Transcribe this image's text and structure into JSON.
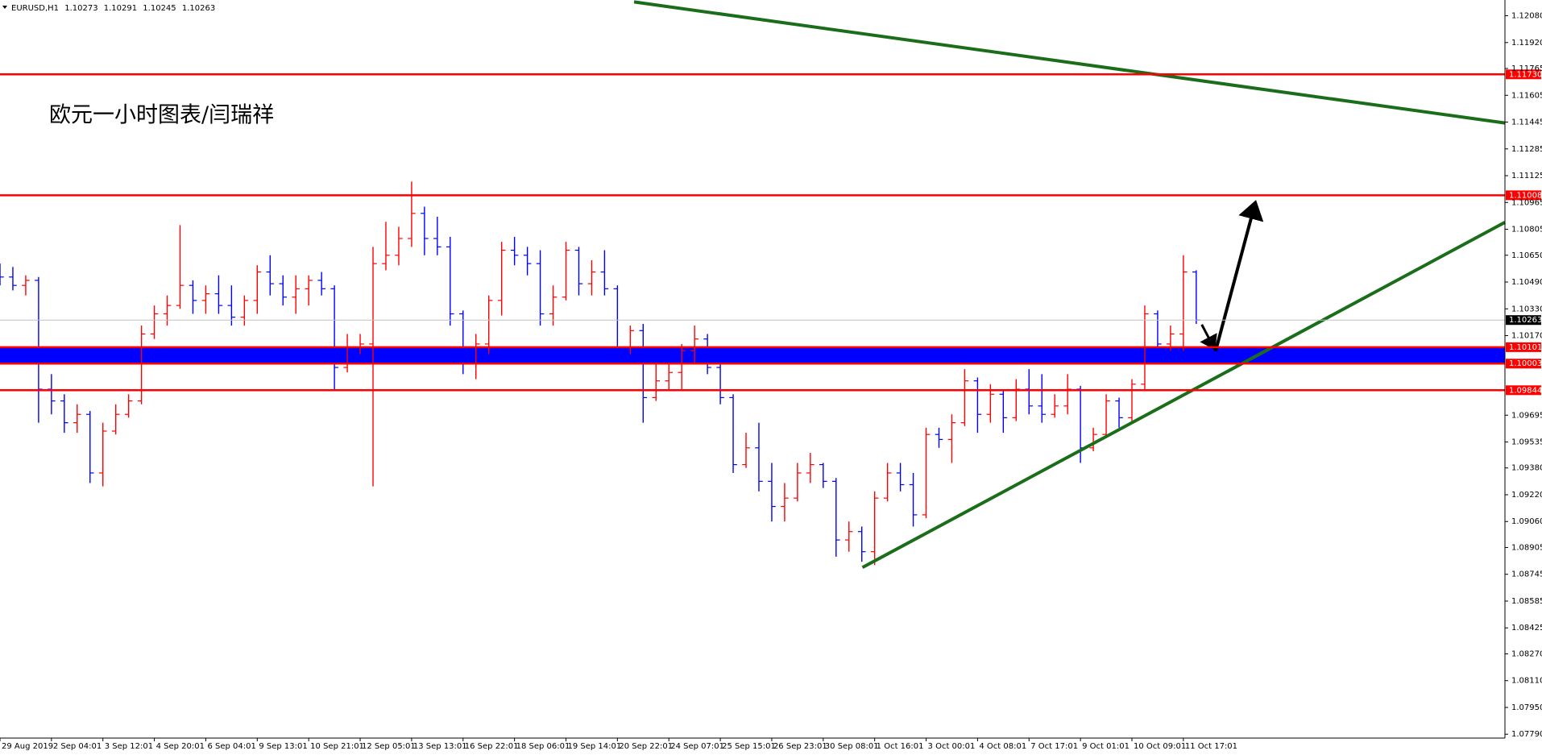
{
  "chart_data": {
    "type": "ohlc",
    "title": "EURUSD,H1",
    "quote": [
      1.10273,
      1.10291,
      1.10245,
      1.10263
    ],
    "annotation": "欧元一小时图表/闫瑞祥",
    "up_color": "#ff0000",
    "down_color": "#0000ff",
    "open": [
      1.1055,
      1.1052,
      1.1047,
      1.105,
      1.0985,
      1.0978,
      1.0965,
      1.097,
      1.0935,
      1.096,
      1.097,
      1.0978,
      1.1018,
      1.103,
      1.1035,
      1.1047,
      1.1038,
      1.1042,
      1.1035,
      1.1028,
      1.1038,
      1.1055,
      1.1048,
      1.104,
      1.1045,
      1.105,
      1.1045,
      1.0998,
      1.101,
      1.1012,
      1.106,
      1.1065,
      1.1075,
      1.109,
      1.1075,
      1.107,
      1.103,
      1.1,
      1.1012,
      1.1038,
      1.1068,
      1.1065,
      1.106,
      1.103,
      1.104,
      1.1068,
      1.1048,
      1.1055,
      1.1045,
      1.101,
      1.102,
      1.098,
      1.099,
      1.0995,
      1.1008,
      1.1015,
      1.0998,
      1.098,
      1.094,
      1.095,
      1.093,
      1.0915,
      1.092,
      1.0935,
      1.094,
      1.093,
      1.0895,
      1.09,
      1.0888,
      1.092,
      1.0935,
      1.0928,
      1.091,
      1.0958,
      1.0955,
      1.0965,
      1.099,
      1.097,
      1.0982,
      1.0968,
      1.0985,
      1.0975,
      1.097,
      1.0975,
      1.0985,
      1.095,
      1.0958,
      1.0978,
      1.0968,
      1.0988,
      1.103,
      1.1012,
      1.1018,
      1.1055
    ],
    "high": [
      1.106,
      1.1058,
      1.1053,
      1.1052,
      1.0994,
      1.0982,
      1.0976,
      1.0972,
      1.0965,
      1.0976,
      1.0982,
      1.1023,
      1.1035,
      1.1041,
      1.1083,
      1.105,
      1.1047,
      1.1053,
      1.1047,
      1.1041,
      1.1059,
      1.1065,
      1.1053,
      1.1053,
      1.1053,
      1.1055,
      1.1047,
      1.1018,
      1.1018,
      1.107,
      1.1085,
      1.1082,
      1.1109,
      1.1094,
      1.1088,
      1.1076,
      1.1032,
      1.1018,
      1.1041,
      1.1073,
      1.1076,
      1.107,
      1.1068,
      1.1047,
      1.1073,
      1.107,
      1.1062,
      1.1068,
      1.1047,
      1.1023,
      1.1024,
      1.1,
      1.1,
      1.1012,
      1.1023,
      1.1018,
      1.1,
      1.0982,
      1.0959,
      1.0965,
      1.0941,
      1.0929,
      1.0941,
      1.0947,
      1.0941,
      1.0932,
      1.0906,
      1.0903,
      1.0924,
      1.0941,
      1.0941,
      1.0935,
      1.0962,
      1.0962,
      1.097,
      1.0997,
      1.0992,
      1.0988,
      1.0985,
      1.0991,
      1.0997,
      1.0994,
      1.0982,
      1.0994,
      1.0987,
      1.0962,
      1.0982,
      1.098,
      1.0991,
      1.1035,
      1.1032,
      1.1023,
      1.1065,
      1.1056
    ],
    "low": [
      1.1047,
      1.1044,
      1.1041,
      1.0965,
      1.097,
      1.0959,
      1.0959,
      1.0929,
      1.0927,
      1.0958,
      1.0968,
      1.0976,
      1.1015,
      1.1023,
      1.1033,
      1.103,
      1.103,
      1.103,
      1.1023,
      1.1023,
      1.103,
      1.1041,
      1.1035,
      1.103,
      1.1035,
      1.1041,
      1.0985,
      1.0995,
      1.1006,
      1.0927,
      1.1056,
      1.1059,
      1.107,
      1.1065,
      1.1065,
      1.1023,
      1.0994,
      1.0991,
      1.1006,
      1.1029,
      1.1059,
      1.1053,
      1.1023,
      1.1023,
      1.1038,
      1.1041,
      1.1041,
      1.1041,
      1.1,
      1.1006,
      1.0965,
      1.0978,
      1.0985,
      1.0985,
      1.1,
      1.0994,
      1.0976,
      1.0935,
      1.0938,
      1.0924,
      1.0906,
      1.0906,
      1.0918,
      1.0929,
      1.0926,
      1.0885,
      1.0888,
      1.0882,
      1.088,
      1.0918,
      1.0924,
      1.0903,
      1.0908,
      1.095,
      1.0941,
      1.0963,
      1.0959,
      1.0965,
      1.0959,
      1.0966,
      1.097,
      1.0965,
      1.0968,
      1.097,
      1.0941,
      1.0948,
      1.0956,
      1.0962,
      1.0966,
      1.0985,
      1.1006,
      1.1008,
      1.1008,
      1.1024
    ],
    "close": [
      1.1052,
      1.1047,
      1.105,
      1.0985,
      1.0978,
      1.0965,
      1.097,
      1.0935,
      1.096,
      1.097,
      1.0978,
      1.1018,
      1.103,
      1.1035,
      1.1047,
      1.1038,
      1.1042,
      1.1035,
      1.1028,
      1.1038,
      1.1055,
      1.1048,
      1.104,
      1.1045,
      1.105,
      1.1045,
      1.0998,
      1.101,
      1.1012,
      1.106,
      1.1065,
      1.1075,
      1.109,
      1.1075,
      1.107,
      1.103,
      1.1,
      1.1012,
      1.1038,
      1.1068,
      1.1065,
      1.106,
      1.103,
      1.104,
      1.1068,
      1.1048,
      1.1055,
      1.1045,
      1.101,
      1.102,
      1.098,
      1.099,
      1.0995,
      1.1008,
      1.1015,
      1.0998,
      1.098,
      1.094,
      1.095,
      1.093,
      1.0915,
      1.092,
      1.0935,
      1.094,
      1.093,
      1.0895,
      1.09,
      1.0888,
      1.092,
      1.0935,
      1.0928,
      1.091,
      1.0958,
      1.0955,
      1.0965,
      1.099,
      1.097,
      1.0982,
      1.0968,
      1.0985,
      1.0975,
      1.097,
      1.0975,
      1.0985,
      1.095,
      1.0958,
      1.0978,
      1.0968,
      1.0988,
      1.103,
      1.1012,
      1.1018,
      1.1055,
      1.10263
    ],
    "xlim": [
      0,
      117
    ],
    "xticks": [
      {
        "value": 0,
        "label": "29 Aug 2019"
      },
      {
        "value": 4,
        "label": "2 Sep 04:01"
      },
      {
        "value": 8,
        "label": "3 Sep 12:01"
      },
      {
        "value": 12,
        "label": "4 Sep 20:01"
      },
      {
        "value": 16,
        "label": "6 Sep 04:01"
      },
      {
        "value": 20,
        "label": "9 Sep 13:01"
      },
      {
        "value": 24,
        "label": "10 Sep 21:01"
      },
      {
        "value": 28,
        "label": "12 Sep 05:01"
      },
      {
        "value": 32,
        "label": "13 Sep 13:01"
      },
      {
        "value": 36,
        "label": "16 Sep 22:01"
      },
      {
        "value": 40,
        "label": "18 Sep 06:01"
      },
      {
        "value": 44,
        "label": "19 Sep 14:01"
      },
      {
        "value": 48,
        "label": "20 Sep 22:01"
      },
      {
        "value": 52,
        "label": "24 Sep 07:01"
      },
      {
        "value": 56,
        "label": "25 Sep 15:01"
      },
      {
        "value": 60,
        "label": "26 Sep 23:01"
      },
      {
        "value": 64,
        "label": "30 Sep 08:01"
      },
      {
        "value": 68,
        "label": "1 Oct 16:01"
      },
      {
        "value": 72,
        "label": "3 Oct 00:01"
      },
      {
        "value": 76,
        "label": "4 Oct 08:01"
      },
      {
        "value": 80,
        "label": "7 Oct 17:01"
      },
      {
        "value": 84,
        "label": "9 Oct 01:01"
      },
      {
        "value": 88,
        "label": "10 Oct 09:01"
      },
      {
        "value": 92,
        "label": "11 Oct 17:01"
      }
    ],
    "ylim": [
      1.07767,
      1.12174
    ],
    "yticks": [
      {
        "value": 1.1208,
        "label": "1.12080"
      },
      {
        "value": 1.1192,
        "label": "1.11920"
      },
      1.11765,
      1.11605,
      1.11445,
      1.11285,
      1.11125,
      1.10965,
      1.10805,
      {
        "value": 1.1065,
        "label": "1.10650"
      },
      {
        "value": 1.1049,
        "label": "1.10490"
      },
      {
        "value": 1.1033,
        "label": "1.10330"
      },
      {
        "value": 1.1017,
        "label": "1.10170"
      },
      1.09695,
      1.09535,
      {
        "value": 1.0938,
        "label": "1.09380"
      },
      {
        "value": 1.0922,
        "label": "1.09220"
      },
      {
        "value": 1.0906,
        "label": "1.09060"
      },
      1.08905,
      1.08745,
      1.08585,
      1.08425,
      {
        "value": 1.0827,
        "label": "1.08270"
      },
      {
        "value": 1.0811,
        "label": "1.08110"
      },
      {
        "value": 1.0795,
        "label": "1.07950"
      },
      {
        "value": 1.0779,
        "label": "1.07790"
      }
    ],
    "hlines": [
      {
        "value": 1.1173,
        "label": "1.11730"
      },
      {
        "value": 1.11008,
        "label": "1.11008"
      },
      {
        "value": 1.10101,
        "label": "1.10101"
      },
      {
        "value": 1.10003,
        "label": "1.10003"
      },
      {
        "value": 1.09844,
        "label": "1.09844"
      }
    ],
    "hline_color": "#ff0000",
    "zone_color": "#0000ff"
  }
}
